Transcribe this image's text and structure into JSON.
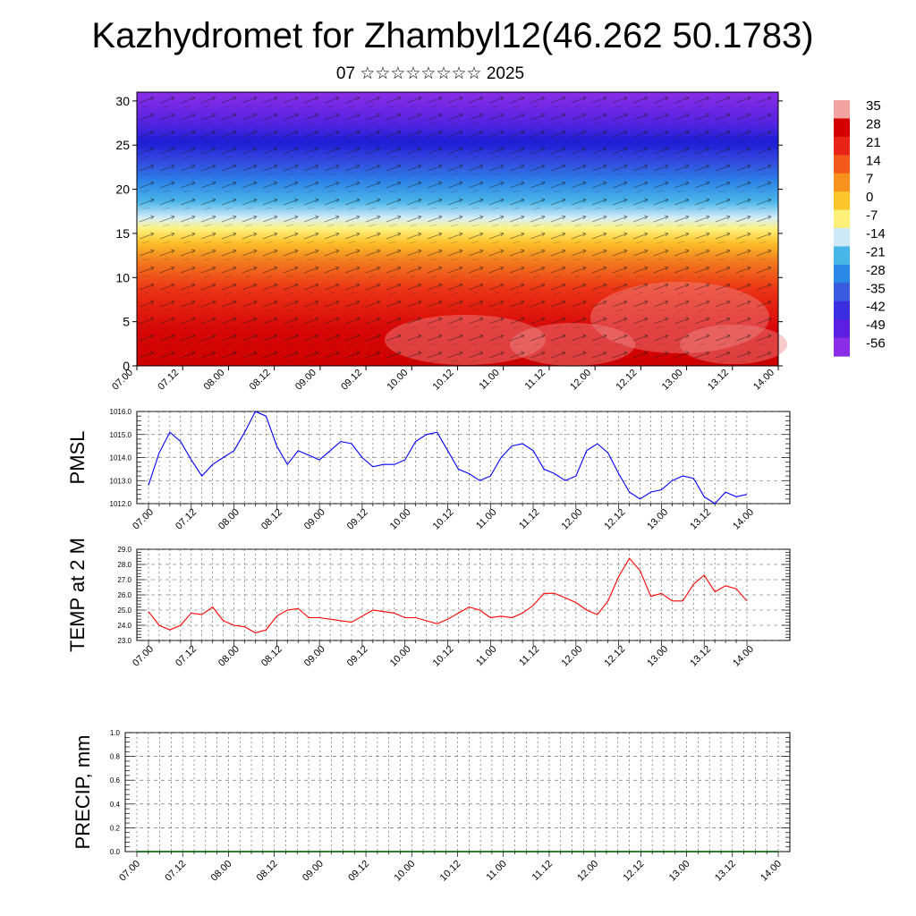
{
  "page": {
    "title": "Kazhydromet for Zhambyl12(46.262 50.1783)",
    "subtitle": "07 ☆☆☆☆☆☆☆☆ 2025"
  },
  "colors": {
    "pmsl_line": "#0000ff",
    "temp_line": "#ff0000",
    "precip_baseline": "#2e7d32",
    "grid": "#555555"
  },
  "chart_data": [
    {
      "type": "heatmap",
      "name": "cross-section",
      "xlabel": "",
      "ylabel": "",
      "ylim": [
        0,
        31
      ],
      "y_ticks": [
        "0",
        "5",
        "10",
        "15",
        "20",
        "25",
        "30"
      ],
      "x_ticks": [
        "07.00",
        "07.12",
        "08.00",
        "08.12",
        "09.00",
        "09.12",
        "10.00",
        "10.12",
        "11.00",
        "11.12",
        "12.00",
        "12.12",
        "13.00",
        "13.12",
        "14.00"
      ],
      "colorbar": {
        "labels": [
          "35",
          "28",
          "21",
          "14",
          "7",
          "0",
          "-7",
          "-14",
          "-21",
          "-28",
          "-35",
          "-42",
          "-49",
          "-56"
        ],
        "colors": [
          "#f4a3a3",
          "#d40000",
          "#e82418",
          "#f25a1c",
          "#f7921f",
          "#fbc62c",
          "#fff07a",
          "#cde9f5",
          "#48b7e8",
          "#2b88e6",
          "#3a5ae0",
          "#3a2ee0",
          "#5a1fe0",
          "#8a2de6"
        ]
      },
      "legend": "right",
      "overlay": "wind vectors"
    },
    {
      "type": "line",
      "name": "PMSL",
      "ylabel": "PMSL",
      "ylim": [
        1012.0,
        1016.0
      ],
      "y_ticks": [
        "1012.0",
        "1013.0",
        "1014.0",
        "1015.0",
        "1016.0"
      ],
      "x_ticks": [
        "07.00",
        "07.12",
        "08.00",
        "08.12",
        "09.00",
        "09.12",
        "10.00",
        "10.12",
        "11.00",
        "11.12",
        "12.00",
        "12.12",
        "13.00",
        "13.12",
        "14.00"
      ],
      "x_step_hours": 3,
      "values": [
        1012.8,
        1014.2,
        1015.1,
        1014.7,
        1013.9,
        1013.2,
        1013.7,
        1014.0,
        1014.3,
        1015.1,
        1016.0,
        1015.8,
        1014.5,
        1013.7,
        1014.3,
        1014.1,
        1013.9,
        1014.3,
        1014.7,
        1014.6,
        1014.0,
        1013.6,
        1013.7,
        1013.7,
        1013.9,
        1014.7,
        1015.0,
        1015.1,
        1014.3,
        1013.5,
        1013.3,
        1013.0,
        1013.2,
        1014.0,
        1014.5,
        1014.6,
        1014.3,
        1013.5,
        1013.3,
        1013.0,
        1013.2,
        1014.3,
        1014.6,
        1014.2,
        1013.3,
        1012.5,
        1012.2,
        1012.5,
        1012.6,
        1013.0,
        1013.2,
        1013.1,
        1012.3,
        1012.0,
        1012.5,
        1012.3,
        1012.4
      ]
    },
    {
      "type": "line",
      "name": "TEMP at 2 M",
      "ylabel": "TEMP at 2 M",
      "ylim": [
        23.0,
        29.0
      ],
      "y_ticks": [
        "23.0",
        "24.0",
        "25.0",
        "26.0",
        "27.0",
        "28.0",
        "29.0"
      ],
      "x_ticks": [
        "07.00",
        "07.12",
        "08.00",
        "08.12",
        "09.00",
        "09.12",
        "10.00",
        "10.12",
        "11.00",
        "11.12",
        "12.00",
        "12.12",
        "13.00",
        "13.12",
        "14.00"
      ],
      "x_step_hours": 3,
      "values": [
        24.9,
        24.0,
        23.7,
        24.0,
        24.8,
        24.7,
        25.2,
        24.3,
        24.0,
        23.9,
        23.5,
        23.7,
        24.6,
        25.0,
        25.1,
        24.5,
        24.5,
        24.4,
        24.3,
        24.2,
        24.6,
        25.0,
        24.9,
        24.8,
        24.5,
        24.5,
        24.3,
        24.1,
        24.4,
        24.8,
        25.2,
        25.0,
        24.5,
        24.6,
        24.5,
        24.8,
        25.3,
        26.1,
        26.1,
        25.8,
        25.5,
        25.0,
        24.7,
        25.6,
        27.2,
        28.4,
        27.6,
        25.9,
        26.1,
        25.6,
        25.6,
        26.7,
        27.3,
        26.2,
        26.6,
        26.4,
        25.6
      ]
    },
    {
      "type": "bar",
      "name": "PRECIP, mm",
      "ylabel": "PRECIP, mm",
      "ylim": [
        0.0,
        1.0
      ],
      "y_ticks": [
        "0.0",
        "0.2",
        "0.4",
        "0.6",
        "0.8",
        "1.0"
      ],
      "x_ticks": [
        "07.00",
        "07.12",
        "08.00",
        "08.12",
        "09.00",
        "09.12",
        "10.00",
        "10.12",
        "11.00",
        "11.12",
        "12.00",
        "12.12",
        "13.00",
        "13.12",
        "14.00"
      ],
      "values": [
        0,
        0,
        0,
        0,
        0,
        0,
        0,
        0,
        0,
        0,
        0,
        0,
        0,
        0
      ]
    }
  ]
}
